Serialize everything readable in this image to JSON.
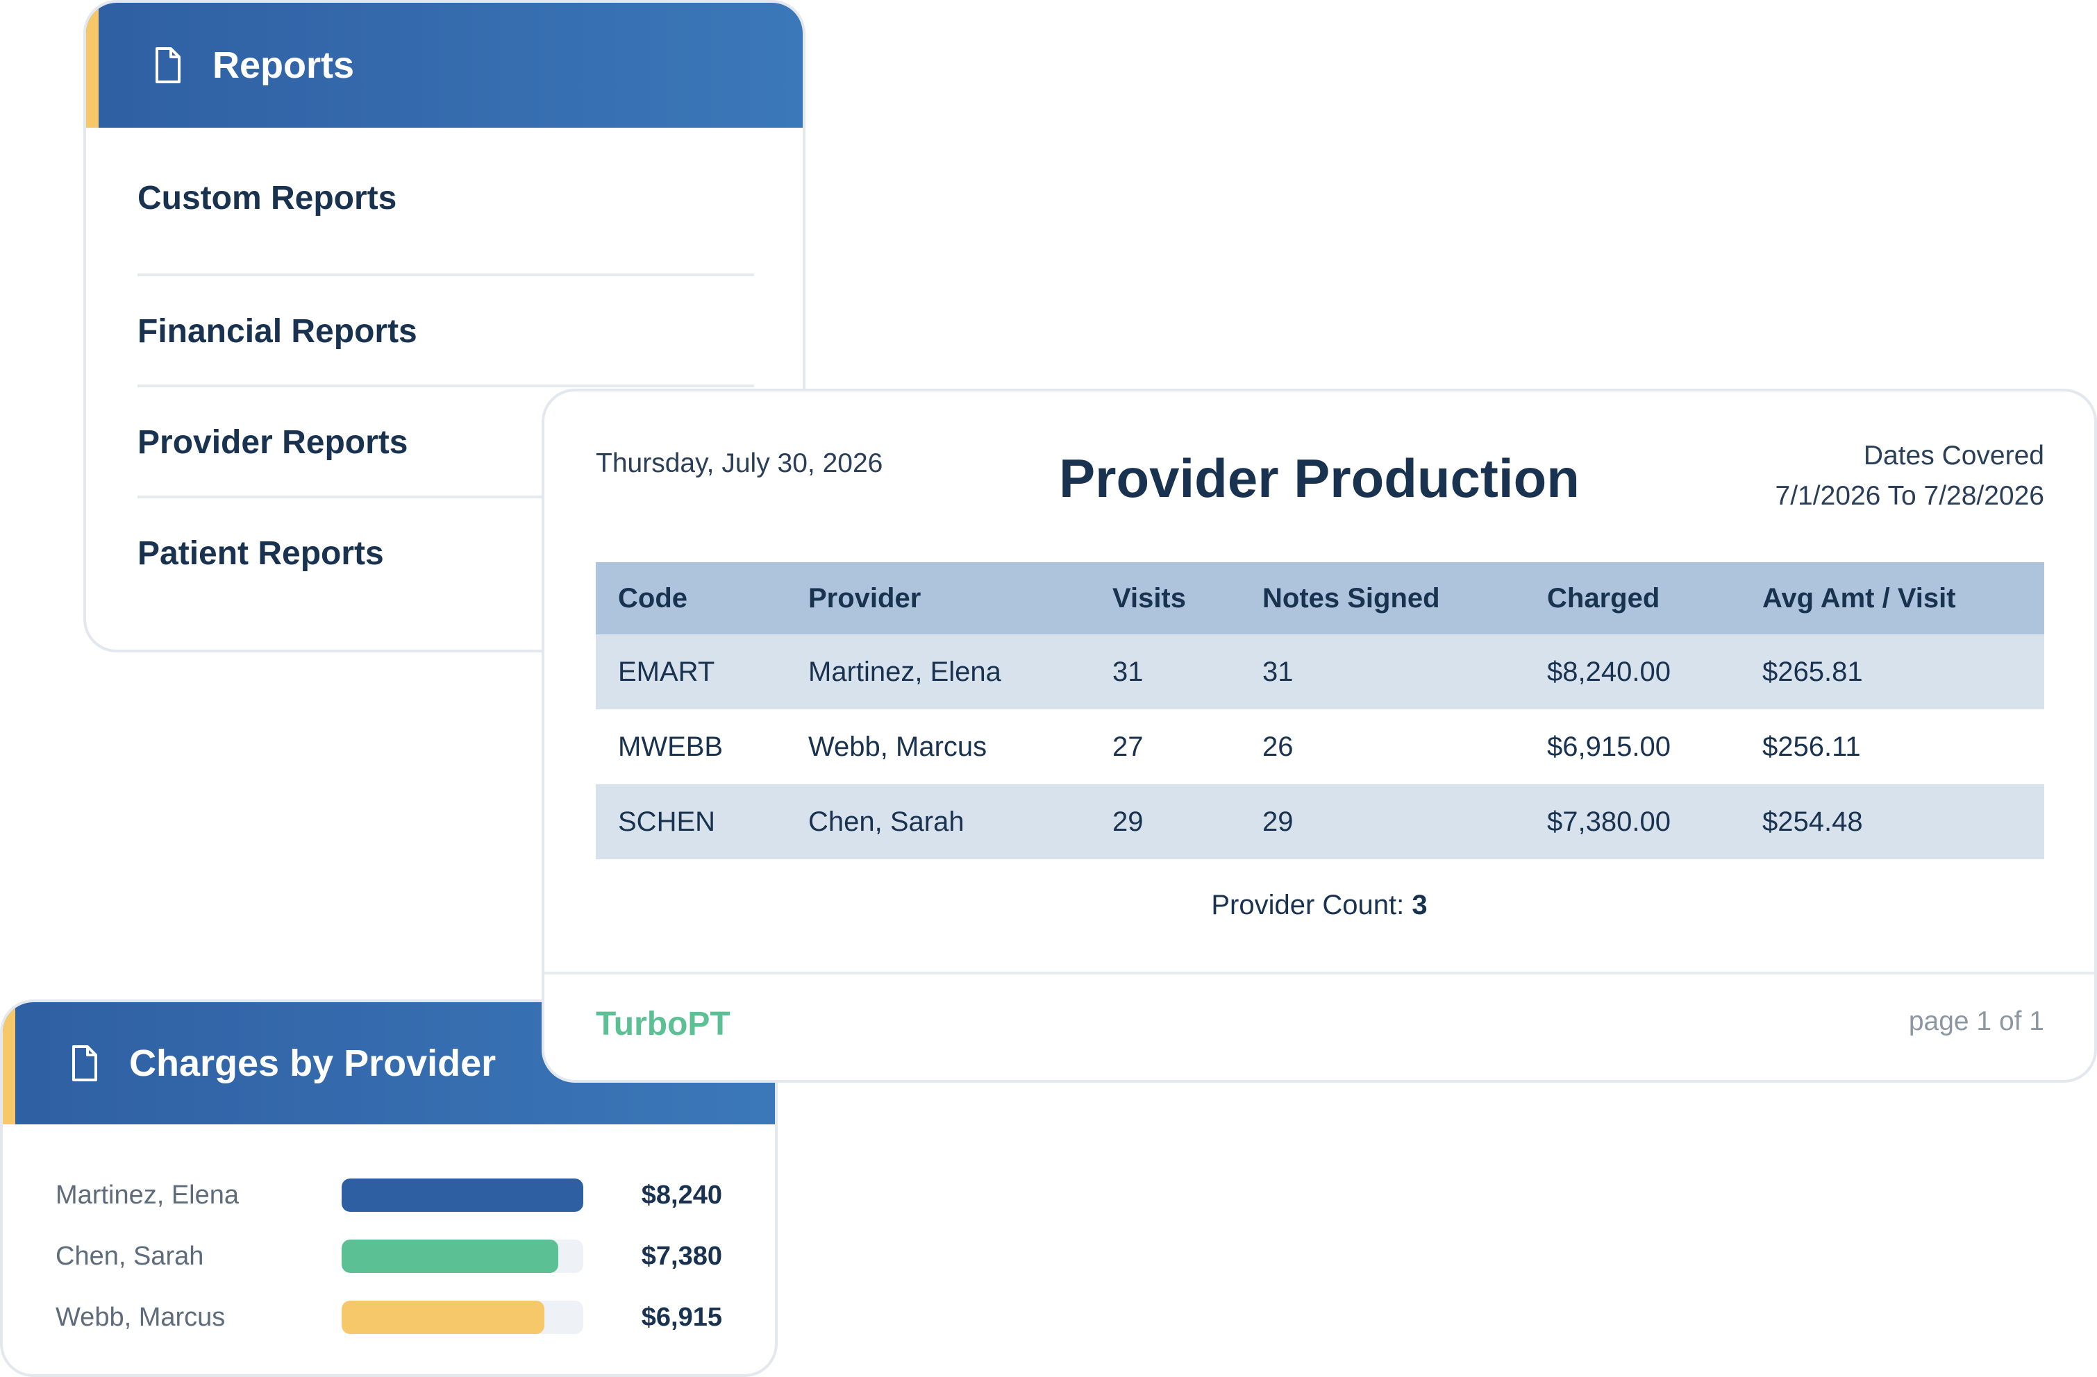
{
  "reports": {
    "title": "Reports",
    "icon": "document-icon",
    "items": [
      {
        "label": "Custom Reports"
      },
      {
        "label": "Financial Reports"
      },
      {
        "label": "Provider Reports"
      },
      {
        "label": "Patient Reports"
      }
    ]
  },
  "production": {
    "date": "Thursday, July 30, 2026",
    "title": "Provider Production",
    "dates_covered_label": "Dates Covered",
    "dates_covered_range": "7/1/2026 To 7/28/2026",
    "columns": [
      "Code",
      "Provider",
      "Visits",
      "Notes Signed",
      "Charged",
      "Avg Amt / Visit"
    ],
    "rows": [
      {
        "code": "EMART",
        "provider": "Martinez, Elena",
        "visits": "31",
        "notes": "31",
        "charged": "$8,240.00",
        "avg": "$265.81"
      },
      {
        "code": "MWEBB",
        "provider": "Webb, Marcus",
        "visits": "27",
        "notes": "26",
        "charged": "$6,915.00",
        "avg": "$256.11"
      },
      {
        "code": "SCHEN",
        "provider": "Chen, Sarah",
        "visits": "29",
        "notes": "29",
        "charged": "$7,380.00",
        "avg": "$254.48"
      }
    ],
    "provider_count_label": "Provider Count:",
    "provider_count": "3",
    "brand": "TurboPT",
    "page": "page 1 of 1"
  },
  "charges": {
    "title": "Charges by Provider",
    "icon": "document-icon",
    "colors": {
      "header": "#2f5fa3",
      "accent": "#f6c86a"
    },
    "bars": [
      {
        "name": "Martinez, Elena",
        "value_label": "$8,240",
        "fill": 1.0,
        "color": "#2f5fa3"
      },
      {
        "name": "Chen, Sarah",
        "value_label": "$7,380",
        "fill": 0.896,
        "color": "#5bc195"
      },
      {
        "name": "Webb, Marcus",
        "value_label": "$6,915",
        "fill": 0.839,
        "color": "#f6c86a"
      }
    ]
  }
}
